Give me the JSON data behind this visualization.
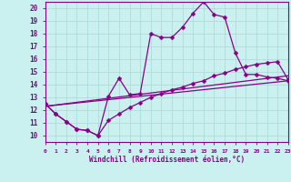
{
  "xlabel": "Windchill (Refroidissement éolien,°C)",
  "xlim": [
    0,
    23
  ],
  "ylim": [
    9.5,
    20.5
  ],
  "background_color": "#caf0f0",
  "line_color": "#880088",
  "grid_color": "#aadddd",
  "line1_x": [
    0,
    1,
    2,
    3,
    4,
    5,
    6,
    7,
    8,
    9,
    10,
    11,
    12,
    13,
    14,
    15,
    16,
    17,
    18,
    19,
    20,
    21,
    22,
    23
  ],
  "line1_y": [
    12.5,
    11.7,
    11.1,
    10.5,
    10.4,
    10.0,
    13.1,
    14.5,
    13.2,
    13.3,
    18.0,
    17.7,
    17.7,
    18.5,
    19.6,
    20.5,
    19.5,
    19.3,
    16.5,
    14.8,
    14.8,
    14.6,
    14.5,
    14.3
  ],
  "line2_x": [
    0,
    1,
    2,
    3,
    4,
    5,
    6,
    7,
    8,
    9,
    10,
    11,
    12,
    13,
    14,
    15,
    16,
    17,
    18,
    19,
    20,
    21,
    22,
    23
  ],
  "line2_y": [
    12.5,
    11.7,
    11.1,
    10.5,
    10.4,
    10.0,
    11.2,
    11.7,
    12.2,
    12.6,
    13.0,
    13.3,
    13.6,
    13.8,
    14.1,
    14.3,
    14.7,
    14.9,
    15.2,
    15.4,
    15.6,
    15.7,
    15.8,
    14.4
  ],
  "line3_x": [
    0,
    23
  ],
  "line3_y": [
    12.3,
    14.3
  ],
  "line4_x": [
    0,
    23
  ],
  "line4_y": [
    12.3,
    14.7
  ],
  "markersize": 2.5,
  "linewidth": 0.9
}
